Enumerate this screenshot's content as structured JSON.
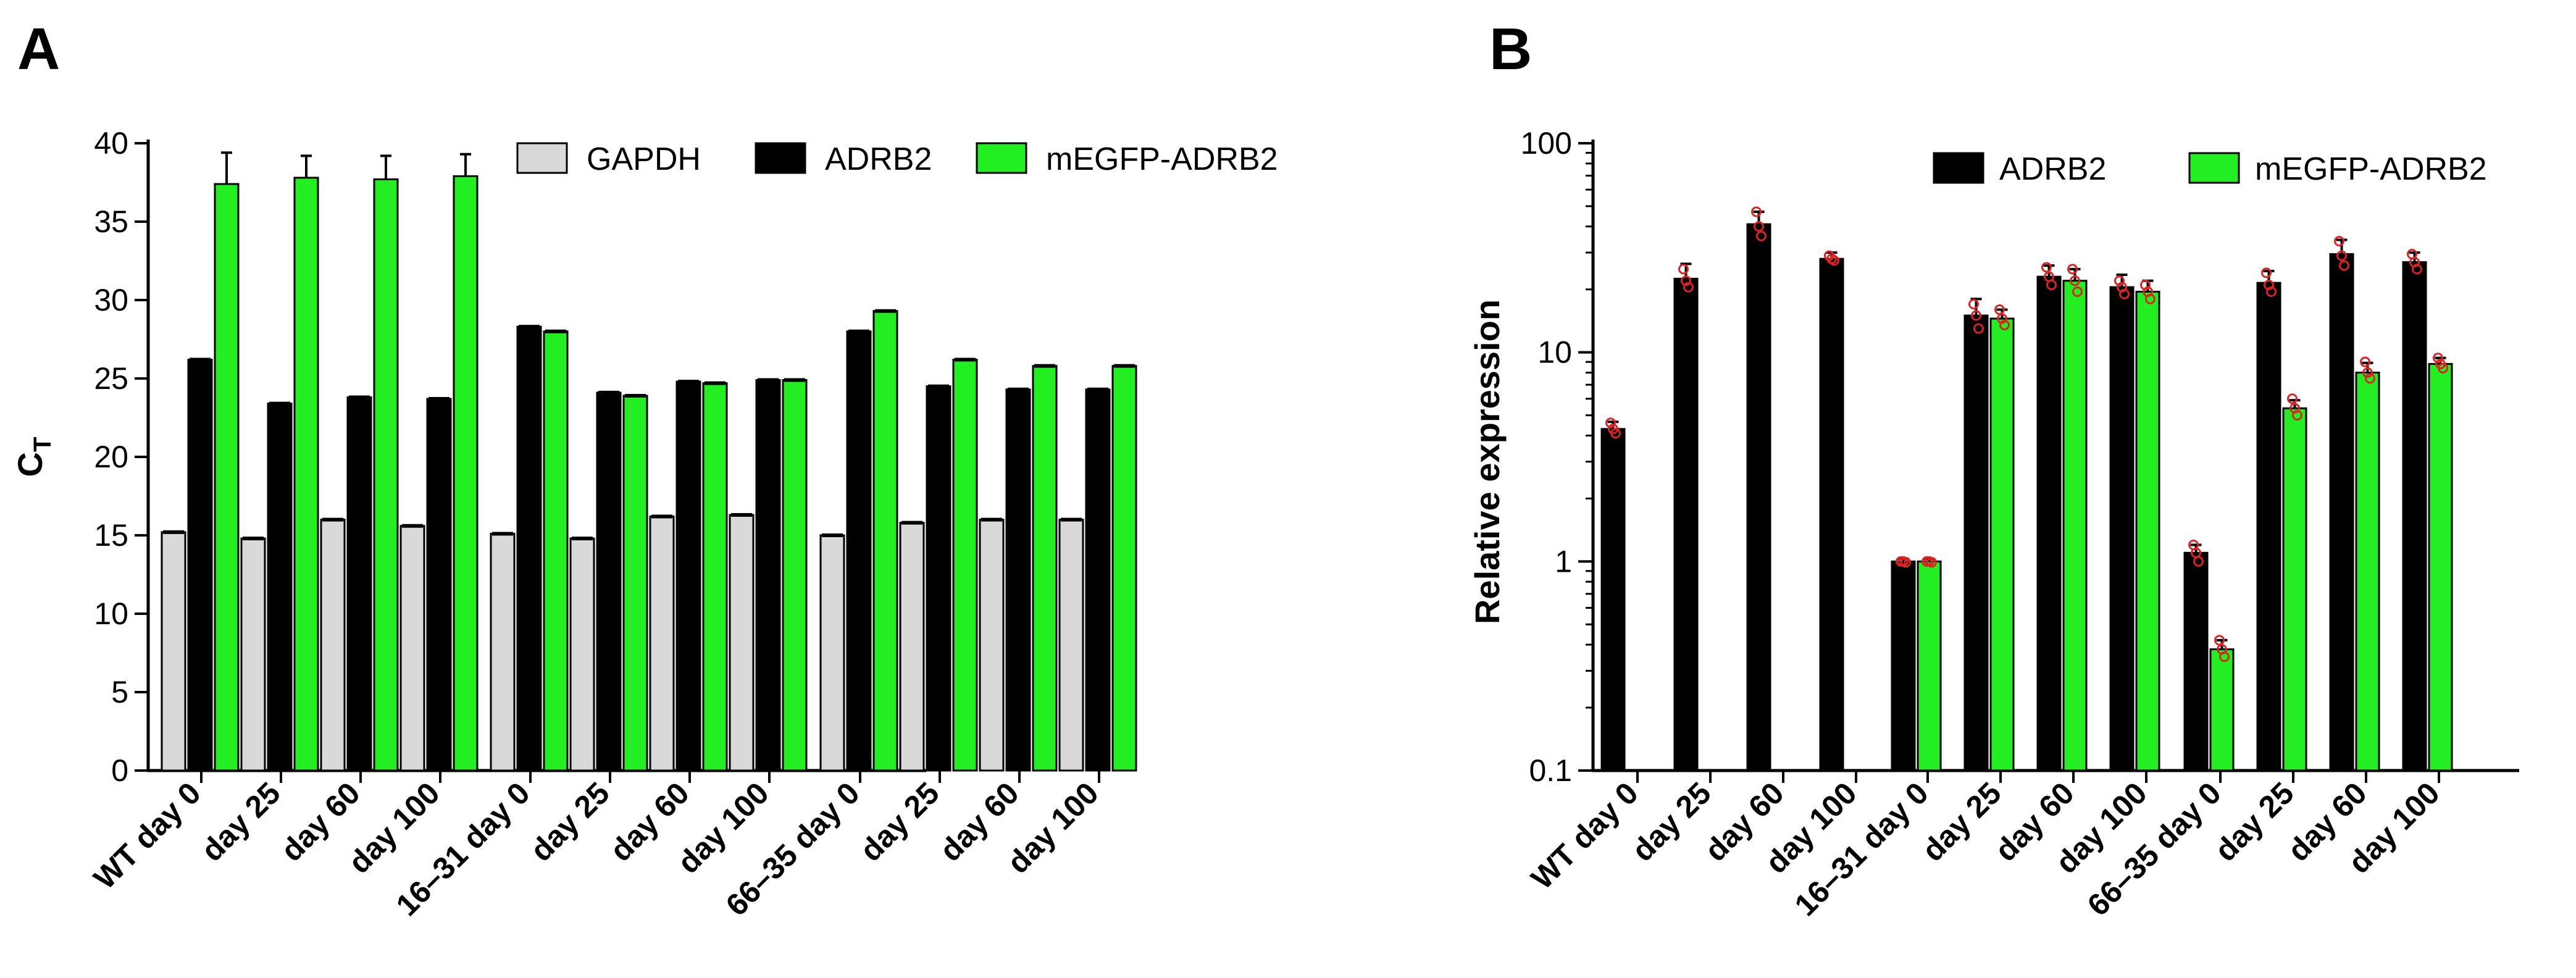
{
  "colors": {
    "gapdh": "#d9d9d9",
    "adrb2": "#000000",
    "mEGFP": "#22ee22",
    "dots": "#dd2222",
    "axis": "#000000"
  },
  "panels": [
    {
      "letter": "A"
    },
    {
      "letter": "B"
    }
  ],
  "chart_data": [
    {
      "type": "bar",
      "title": "",
      "xlabel": "",
      "ylabel": "C",
      "ylabel_subscript": "T",
      "ylim": [
        0,
        40
      ],
      "yticks": [
        0,
        5,
        10,
        15,
        20,
        25,
        30,
        35,
        40
      ],
      "scale": "linear",
      "legend_position": "top-right",
      "categories": [
        "WT day 0",
        "day 25",
        "day 60",
        "day 100",
        "16–31 day 0",
        "day 25",
        "day 60",
        "day 100",
        "66–35 day 0",
        "day 25",
        "day 60",
        "day 100"
      ],
      "series": [
        {
          "name": "GAPDH",
          "color": "#d9d9d9",
          "values": [
            15.2,
            14.8,
            16.0,
            15.6,
            15.1,
            14.8,
            16.2,
            16.3,
            15.0,
            15.8,
            16.0,
            16.0
          ],
          "errors": [
            0.1,
            0.1,
            0.1,
            0.1,
            0.1,
            0.1,
            0.1,
            0.1,
            0.1,
            0.1,
            0.1,
            0.1
          ]
        },
        {
          "name": "ADRB2",
          "color": "#000000",
          "values": [
            26.2,
            23.4,
            23.8,
            23.7,
            28.3,
            24.1,
            24.8,
            24.9,
            28.0,
            24.5,
            24.3,
            24.3
          ],
          "errors": [
            0.15,
            0.15,
            0.1,
            0.1,
            0.15,
            0.1,
            0.1,
            0.1,
            0.1,
            0.1,
            0.1,
            0.1
          ]
        },
        {
          "name": "mEGFP-ADRB2",
          "color": "#22ee22",
          "values": [
            37.4,
            37.8,
            37.7,
            37.9,
            28.0,
            23.9,
            24.7,
            24.9,
            29.3,
            26.2,
            25.8,
            25.8
          ],
          "errors": [
            2.0,
            1.4,
            1.5,
            1.4,
            0.1,
            0.1,
            0.1,
            0.1,
            0.1,
            0.1,
            0.1,
            0.1
          ]
        }
      ]
    },
    {
      "type": "bar",
      "title": "",
      "xlabel": "",
      "ylabel": "Relative expression",
      "ylim": [
        0.1,
        100
      ],
      "yticks": [
        0.1,
        1,
        10,
        100
      ],
      "yticklabels": [
        "0.1",
        "1",
        "10",
        "100"
      ],
      "scale": "log",
      "legend_position": "top-right",
      "categories": [
        "WT day 0",
        "day 25",
        "day 60",
        "day 100",
        "16–31 day 0",
        "day 25",
        "day 60",
        "day 100",
        "66–35 day 0",
        "day 25",
        "day 60",
        "day 100"
      ],
      "series": [
        {
          "name": "ADRB2",
          "color": "#000000",
          "values": [
            4.3,
            22.5,
            41.0,
            28.0,
            1.0,
            15.0,
            23.0,
            20.5,
            1.1,
            21.5,
            29.5,
            27.0
          ],
          "errors": [
            0.35,
            4.0,
            6.0,
            2.0,
            0.03,
            3.0,
            3.0,
            3.0,
            0.1,
            3.0,
            5.0,
            3.0
          ]
        },
        {
          "name": "mEGFP-ADRB2",
          "color": "#22ee22",
          "values": [
            null,
            null,
            null,
            null,
            1.0,
            14.5,
            22.0,
            19.5,
            0.38,
            5.4,
            8.0,
            8.8
          ],
          "errors": [
            null,
            null,
            null,
            null,
            0.03,
            1.5,
            3.0,
            2.5,
            0.04,
            0.5,
            0.9,
            0.6
          ]
        }
      ],
      "points": {
        "ADRB2": [
          [
            4.6,
            4.3,
            4.1
          ],
          [
            25.0,
            22.0,
            20.5
          ],
          [
            47.0,
            40.0,
            36.0
          ],
          [
            29.0,
            28.0,
            27.5
          ],
          [
            1.0,
            1.0,
            0.99
          ],
          [
            17.0,
            15.0,
            13.0
          ],
          [
            25.5,
            23.0,
            21.0
          ],
          [
            22.0,
            20.5,
            19.0
          ],
          [
            1.2,
            1.1,
            1.0
          ],
          [
            24.0,
            21.0,
            19.5
          ],
          [
            34.0,
            29.0,
            26.0
          ],
          [
            29.5,
            27.0,
            25.0
          ]
        ],
        "mEGFP-ADRB2": [
          null,
          null,
          null,
          null,
          [
            1.0,
            1.0,
            0.99
          ],
          [
            16.0,
            14.5,
            13.5
          ],
          [
            25.0,
            22.0,
            19.5
          ],
          [
            21.0,
            19.5,
            18.0
          ],
          [
            0.42,
            0.38,
            0.35
          ],
          [
            6.0,
            5.4,
            5.0
          ],
          [
            9.0,
            8.0,
            7.5
          ],
          [
            9.4,
            8.8,
            8.4
          ]
        ]
      }
    }
  ]
}
